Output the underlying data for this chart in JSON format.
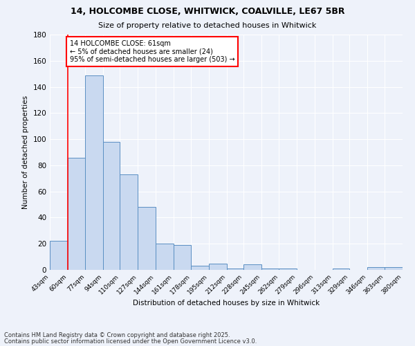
{
  "title1": "14, HOLCOMBE CLOSE, WHITWICK, COALVILLE, LE67 5BR",
  "title2": "Size of property relative to detached houses in Whitwick",
  "xlabel": "Distribution of detached houses by size in Whitwick",
  "ylabel": "Number of detached properties",
  "bar_color": "#c9d9f0",
  "bar_edge_color": "#5a8fc3",
  "bins": [
    43,
    60,
    77,
    94,
    110,
    127,
    144,
    161,
    178,
    195,
    212,
    228,
    245,
    262,
    279,
    296,
    313,
    329,
    346,
    363,
    380
  ],
  "counts": [
    22,
    86,
    149,
    98,
    73,
    48,
    20,
    19,
    3,
    5,
    1,
    4,
    1,
    1,
    0,
    0,
    1,
    0,
    2,
    2
  ],
  "bin_labels": [
    "43sqm",
    "60sqm",
    "77sqm",
    "94sqm",
    "110sqm",
    "127sqm",
    "144sqm",
    "161sqm",
    "178sqm",
    "195sqm",
    "212sqm",
    "228sqm",
    "245sqm",
    "262sqm",
    "279sqm",
    "296sqm",
    "313sqm",
    "329sqm",
    "346sqm",
    "363sqm",
    "380sqm"
  ],
  "red_line_x": 60,
  "annotation_text": "14 HOLCOMBE CLOSE: 61sqm\n← 5% of detached houses are smaller (24)\n95% of semi-detached houses are larger (503) →",
  "annotation_box_color": "white",
  "annotation_edge_color": "red",
  "ylim": [
    0,
    180
  ],
  "yticks": [
    0,
    20,
    40,
    60,
    80,
    100,
    120,
    140,
    160,
    180
  ],
  "footer1": "Contains HM Land Registry data © Crown copyright and database right 2025.",
  "footer2": "Contains public sector information licensed under the Open Government Licence v3.0.",
  "bg_color": "#eef2fa"
}
